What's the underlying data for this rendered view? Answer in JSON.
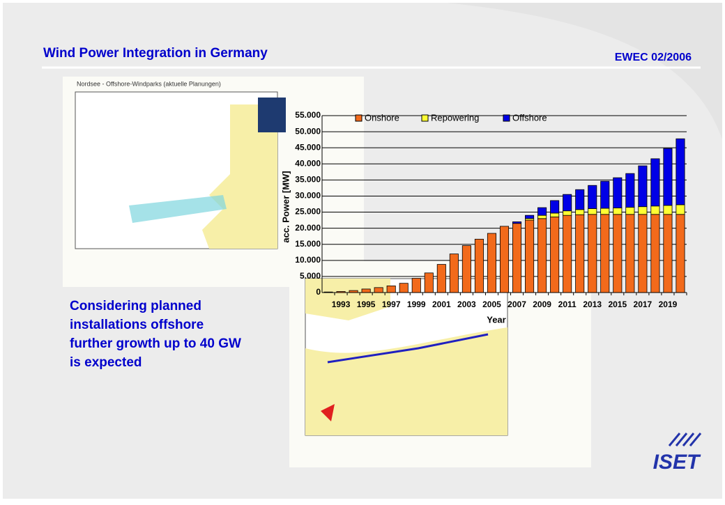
{
  "header": {
    "title": "Wind Power Integration in Germany",
    "event": "EWEC 02/2006"
  },
  "body_text": [
    "Considering planned",
    "installations offshore",
    "further growth up to 40 GW",
    "is expected"
  ],
  "map_title": "Nordsee - Offshore-Windparks (aktuelle Planungen)",
  "logo": "ISET",
  "chart_data": {
    "type": "stacked_bar",
    "ylabel": "acc. Power [MW]",
    "xlabel": "Year",
    "categories": [
      null,
      "1993",
      null,
      "1995",
      null,
      "1997",
      null,
      "1999",
      null,
      "2001",
      null,
      "2003",
      null,
      "2005",
      null,
      "2007",
      null,
      "2009",
      null,
      "2011",
      null,
      "2013",
      null,
      "2015",
      null,
      "2017",
      null,
      "2019",
      null
    ],
    "series": [
      {
        "name": "Onshore",
        "color": "#f26a1b",
        "values": [
          180,
          330,
          630,
          1100,
          1550,
          2080,
          2880,
          4440,
          6100,
          8750,
          12000,
          14600,
          16600,
          18400,
          20600,
          21500,
          22500,
          23000,
          23500,
          24000,
          24200,
          24300,
          24300,
          24300,
          24300,
          24300,
          24300,
          24300,
          24300
        ]
      },
      {
        "name": "Repowering",
        "color": "#ffff33",
        "values": [
          0,
          0,
          0,
          0,
          0,
          0,
          0,
          0,
          0,
          0,
          0,
          0,
          0,
          0,
          0,
          0,
          500,
          1000,
          1200,
          1400,
          1600,
          1800,
          1900,
          2000,
          2200,
          2400,
          2600,
          2800,
          3000
        ]
      },
      {
        "name": "Offshore",
        "color": "#0000e6",
        "values": [
          0,
          0,
          0,
          0,
          0,
          0,
          0,
          0,
          0,
          0,
          0,
          0,
          0,
          0,
          0,
          500,
          1000,
          2400,
          3900,
          5100,
          6200,
          7200,
          8400,
          9400,
          10500,
          12700,
          14700,
          17700,
          20500
        ]
      }
    ],
    "ylim": [
      0,
      55000
    ],
    "yticks": [
      0,
      {
        "value": 5000,
        "label": "5.000"
      },
      {
        "value": 10000,
        "label": "10.000"
      },
      {
        "value": 15000,
        "label": "15.000"
      },
      {
        "value": 20000,
        "label": "20.000"
      },
      {
        "value": 25000,
        "label": "25.000"
      },
      {
        "value": 30000,
        "label": "30.000"
      },
      {
        "value": 35000,
        "label": "35.000"
      },
      {
        "value": 40000,
        "label": "40.000"
      },
      {
        "value": 45000,
        "label": "45.000"
      },
      {
        "value": 50000,
        "label": "50.000"
      },
      {
        "value": 55000,
        "label": "55.000"
      }
    ],
    "grid": true,
    "legend": "top"
  }
}
